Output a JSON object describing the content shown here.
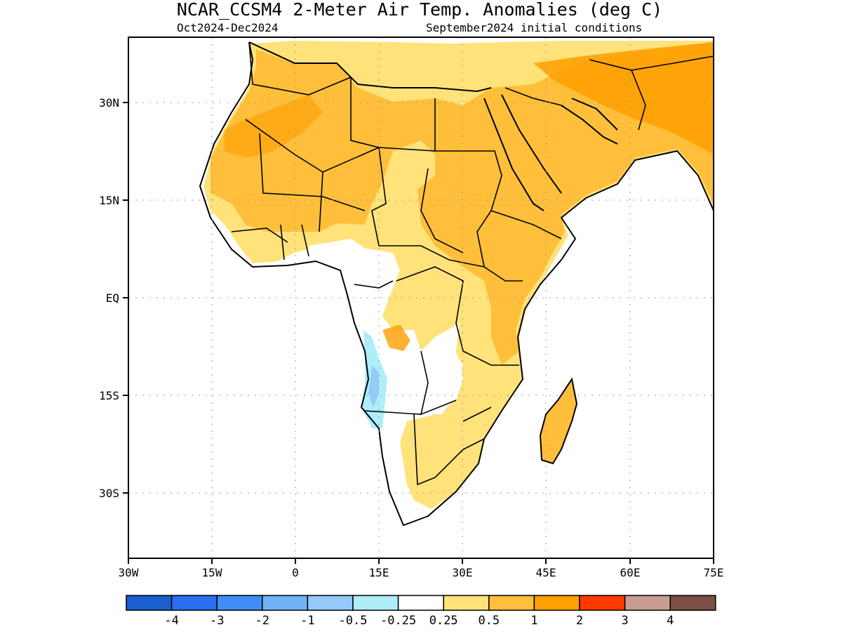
{
  "title": "NCAR_CCSM4 2-Meter Air Temp. Anomalies (deg C)",
  "subtitle_left": "Oct2024-Dec2024",
  "subtitle_right": "September2024 initial conditions",
  "axes": {
    "lon_labels": [
      "30W",
      "15W",
      "0",
      "15E",
      "30E",
      "45E",
      "60E",
      "75E"
    ],
    "lat_labels": [
      "30N",
      "15N",
      "EQ",
      "15S",
      "30S"
    ],
    "lon_range": [
      -30,
      75
    ],
    "lat_range": [
      -40,
      37
    ],
    "grid": "dotted"
  },
  "legend": {
    "colors": [
      "#1a5fce",
      "#2a6ef0",
      "#3d8ff5",
      "#72b2f8",
      "#93cbf8",
      "#aeeef8",
      "#ffffff",
      "#ffe27a",
      "#ffbf3a",
      "#ff9f00",
      "#ff3a00",
      "#c99e92",
      "#7a4f44"
    ],
    "labels": [
      "-4",
      "-3",
      "-2",
      "-1",
      "-0.5",
      "-0.25",
      "0.25",
      "0.5",
      "1",
      "2",
      "3",
      "4"
    ]
  }
}
